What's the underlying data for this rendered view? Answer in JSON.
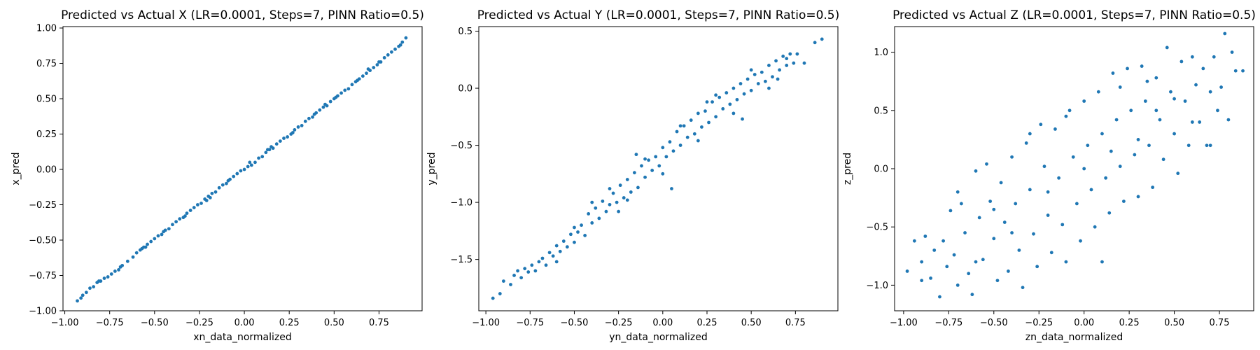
{
  "chart_data": [
    {
      "type": "scatter",
      "title": "Predicted vs Actual X (LR=0.0001, Steps=7, PINN Ratio=0.5)",
      "xlabel": "xn_data_normalized",
      "ylabel": "x_pred",
      "xlim": [
        -1.01,
        0.99
      ],
      "ylim": [
        -1.0,
        1.01
      ],
      "xticks": [
        -1.0,
        -0.75,
        -0.5,
        -0.25,
        0.0,
        0.25,
        0.5,
        0.75
      ],
      "xtick_labels": [
        "−1.00",
        "−0.75",
        "−0.50",
        "−0.25",
        "0.00",
        "0.25",
        "0.50",
        "0.75"
      ],
      "yticks": [
        -1.0,
        -0.75,
        -0.5,
        -0.25,
        0.0,
        0.25,
        0.5,
        0.75,
        1.0
      ],
      "ytick_labels": [
        "−1.00",
        "−0.75",
        "−0.50",
        "−0.25",
        "0.00",
        "0.25",
        "0.50",
        "0.75",
        "1.00"
      ],
      "grid": false,
      "color": "#1f77b4",
      "points": [
        [
          -0.93,
          -0.93
        ],
        [
          -0.91,
          -0.91
        ],
        [
          -0.9,
          -0.89
        ],
        [
          -0.88,
          -0.87
        ],
        [
          -0.86,
          -0.84
        ],
        [
          -0.84,
          -0.83
        ],
        [
          -0.82,
          -0.8
        ],
        [
          -0.8,
          -0.79
        ],
        [
          -0.78,
          -0.77
        ],
        [
          -0.76,
          -0.76
        ],
        [
          -0.74,
          -0.74
        ],
        [
          -0.72,
          -0.72
        ],
        [
          -0.7,
          -0.71
        ],
        [
          -0.68,
          -0.68
        ],
        [
          -0.65,
          -0.65
        ],
        [
          -0.62,
          -0.62
        ],
        [
          -0.6,
          -0.59
        ],
        [
          -0.58,
          -0.57
        ],
        [
          -0.56,
          -0.55
        ],
        [
          -0.54,
          -0.53
        ],
        [
          -0.52,
          -0.51
        ],
        [
          -0.5,
          -0.49
        ],
        [
          -0.48,
          -0.47
        ],
        [
          -0.46,
          -0.46
        ],
        [
          -0.44,
          -0.43
        ],
        [
          -0.42,
          -0.42
        ],
        [
          -0.4,
          -0.39
        ],
        [
          -0.38,
          -0.37
        ],
        [
          -0.36,
          -0.35
        ],
        [
          -0.34,
          -0.34
        ],
        [
          -0.32,
          -0.31
        ],
        [
          -0.3,
          -0.29
        ],
        [
          -0.28,
          -0.27
        ],
        [
          -0.26,
          -0.25
        ],
        [
          -0.24,
          -0.24
        ],
        [
          -0.22,
          -0.21
        ],
        [
          -0.2,
          -0.19
        ],
        [
          -0.18,
          -0.17
        ],
        [
          -0.16,
          -0.16
        ],
        [
          -0.14,
          -0.13
        ],
        [
          -0.12,
          -0.11
        ],
        [
          -0.1,
          -0.1
        ],
        [
          -0.08,
          -0.07
        ],
        [
          -0.06,
          -0.05
        ],
        [
          -0.04,
          -0.03
        ],
        [
          -0.02,
          -0.01
        ],
        [
          0.0,
          0.0
        ],
        [
          0.02,
          0.02
        ],
        [
          0.04,
          0.03
        ],
        [
          0.06,
          0.05
        ],
        [
          0.08,
          0.08
        ],
        [
          0.1,
          0.09
        ],
        [
          0.12,
          0.12
        ],
        [
          0.14,
          0.14
        ],
        [
          0.16,
          0.15
        ],
        [
          0.18,
          0.18
        ],
        [
          0.2,
          0.2
        ],
        [
          0.22,
          0.22
        ],
        [
          0.24,
          0.23
        ],
        [
          0.26,
          0.25
        ],
        [
          0.28,
          0.28
        ],
        [
          0.3,
          0.3
        ],
        [
          0.32,
          0.31
        ],
        [
          0.34,
          0.34
        ],
        [
          0.36,
          0.36
        ],
        [
          0.38,
          0.37
        ],
        [
          0.4,
          0.4
        ],
        [
          0.42,
          0.42
        ],
        [
          0.44,
          0.44
        ],
        [
          0.46,
          0.45
        ],
        [
          0.48,
          0.48
        ],
        [
          0.5,
          0.5
        ],
        [
          0.52,
          0.52
        ],
        [
          0.54,
          0.54
        ],
        [
          0.56,
          0.56
        ],
        [
          0.58,
          0.57
        ],
        [
          0.6,
          0.6
        ],
        [
          0.62,
          0.62
        ],
        [
          0.64,
          0.64
        ],
        [
          0.66,
          0.66
        ],
        [
          0.68,
          0.68
        ],
        [
          0.7,
          0.7
        ],
        [
          0.72,
          0.72
        ],
        [
          0.74,
          0.74
        ],
        [
          0.76,
          0.76
        ],
        [
          0.78,
          0.79
        ],
        [
          0.8,
          0.81
        ],
        [
          0.82,
          0.83
        ],
        [
          0.84,
          0.85
        ],
        [
          0.86,
          0.87
        ],
        [
          0.88,
          0.9
        ],
        [
          0.9,
          0.93
        ],
        [
          -0.81,
          -0.79
        ],
        [
          -0.69,
          -0.69
        ],
        [
          -0.57,
          -0.56
        ],
        [
          -0.45,
          -0.44
        ],
        [
          -0.33,
          -0.33
        ],
        [
          -0.21,
          -0.22
        ],
        [
          -0.09,
          -0.08
        ],
        [
          0.03,
          0.05
        ],
        [
          0.15,
          0.16
        ],
        [
          0.27,
          0.26
        ],
        [
          0.39,
          0.39
        ],
        [
          0.51,
          0.51
        ],
        [
          0.63,
          0.63
        ],
        [
          0.75,
          0.76
        ],
        [
          0.87,
          0.88
        ],
        [
          -0.55,
          -0.55
        ],
        [
          -0.19,
          -0.2
        ],
        [
          0.13,
          0.14
        ],
        [
          0.45,
          0.46
        ],
        [
          0.69,
          0.71
        ]
      ]
    },
    {
      "type": "scatter",
      "title": "Predicted vs Actual Y (LR=0.0001, Steps=7, PINN Ratio=0.5)",
      "xlabel": "yn_data_normalized",
      "ylabel": "y_pred",
      "xlim": [
        -1.04,
        0.99
      ],
      "ylim": [
        -1.95,
        0.54
      ],
      "xticks": [
        -1.0,
        -0.75,
        -0.5,
        -0.25,
        0.0,
        0.25,
        0.5,
        0.75
      ],
      "xtick_labels": [
        "−1.00",
        "−0.75",
        "−0.50",
        "−0.25",
        "0.00",
        "0.25",
        "0.50",
        "0.75"
      ],
      "yticks": [
        -1.5,
        -1.0,
        -0.5,
        0.0,
        0.5
      ],
      "ytick_labels": [
        "−1.5",
        "−1.0",
        "−0.5",
        "0.0",
        "0.5"
      ],
      "grid": false,
      "color": "#1f77b4",
      "points": [
        [
          -0.96,
          -1.84
        ],
        [
          -0.92,
          -1.8
        ],
        [
          -0.9,
          -1.69
        ],
        [
          -0.86,
          -1.72
        ],
        [
          -0.84,
          -1.64
        ],
        [
          -0.82,
          -1.6
        ],
        [
          -0.8,
          -1.66
        ],
        [
          -0.78,
          -1.58
        ],
        [
          -0.76,
          -1.61
        ],
        [
          -0.74,
          -1.55
        ],
        [
          -0.72,
          -1.6
        ],
        [
          -0.7,
          -1.52
        ],
        [
          -0.68,
          -1.49
        ],
        [
          -0.66,
          -1.55
        ],
        [
          -0.64,
          -1.44
        ],
        [
          -0.62,
          -1.47
        ],
        [
          -0.6,
          -1.38
        ],
        [
          -0.58,
          -1.43
        ],
        [
          -0.56,
          -1.34
        ],
        [
          -0.54,
          -1.39
        ],
        [
          -0.52,
          -1.28
        ],
        [
          -0.5,
          -1.35
        ],
        [
          -0.48,
          -1.26
        ],
        [
          -0.46,
          -1.2
        ],
        [
          -0.44,
          -1.29
        ],
        [
          -0.42,
          -1.1
        ],
        [
          -0.4,
          -1.18
        ],
        [
          -0.38,
          -1.05
        ],
        [
          -0.36,
          -1.14
        ],
        [
          -0.34,
          -0.99
        ],
        [
          -0.32,
          -1.08
        ],
        [
          -0.3,
          -1.02
        ],
        [
          -0.28,
          -0.92
        ],
        [
          -0.26,
          -1.0
        ],
        [
          -0.24,
          -0.85
        ],
        [
          -0.22,
          -0.96
        ],
        [
          -0.2,
          -0.8
        ],
        [
          -0.18,
          -0.91
        ],
        [
          -0.16,
          -0.74
        ],
        [
          -0.14,
          -0.87
        ],
        [
          -0.12,
          -0.68
        ],
        [
          -0.1,
          -0.78
        ],
        [
          -0.08,
          -0.63
        ],
        [
          -0.06,
          -0.72
        ],
        [
          -0.04,
          -0.6
        ],
        [
          -0.02,
          -0.68
        ],
        [
          0.0,
          -0.52
        ],
        [
          0.02,
          -0.6
        ],
        [
          0.04,
          -0.47
        ],
        [
          0.06,
          -0.55
        ],
        [
          0.08,
          -0.38
        ],
        [
          0.1,
          -0.5
        ],
        [
          0.12,
          -0.33
        ],
        [
          0.14,
          -0.43
        ],
        [
          0.16,
          -0.28
        ],
        [
          0.18,
          -0.4
        ],
        [
          0.2,
          -0.22
        ],
        [
          0.22,
          -0.34
        ],
        [
          0.24,
          -0.2
        ],
        [
          0.26,
          -0.3
        ],
        [
          0.28,
          -0.12
        ],
        [
          0.3,
          -0.25
        ],
        [
          0.32,
          -0.08
        ],
        [
          0.34,
          -0.18
        ],
        [
          0.36,
          -0.04
        ],
        [
          0.38,
          -0.14
        ],
        [
          0.4,
          0.0
        ],
        [
          0.42,
          -0.1
        ],
        [
          0.44,
          0.04
        ],
        [
          0.46,
          -0.05
        ],
        [
          0.48,
          0.08
        ],
        [
          0.5,
          -0.02
        ],
        [
          0.52,
          0.12
        ],
        [
          0.54,
          0.04
        ],
        [
          0.56,
          0.14
        ],
        [
          0.58,
          0.06
        ],
        [
          0.6,
          0.2
        ],
        [
          0.62,
          0.1
        ],
        [
          0.64,
          0.24
        ],
        [
          0.66,
          0.16
        ],
        [
          0.68,
          0.28
        ],
        [
          0.7,
          0.2
        ],
        [
          0.72,
          0.3
        ],
        [
          0.74,
          0.22
        ],
        [
          0.76,
          0.3
        ],
        [
          0.8,
          0.22
        ],
        [
          0.86,
          0.4
        ],
        [
          0.9,
          0.43
        ],
        [
          -0.6,
          -1.52
        ],
        [
          -0.5,
          -1.22
        ],
        [
          -0.4,
          -1.0
        ],
        [
          -0.3,
          -0.88
        ],
        [
          -0.2,
          -0.98
        ],
        [
          -0.1,
          -0.62
        ],
        [
          0.0,
          -0.75
        ],
        [
          0.1,
          -0.33
        ],
        [
          0.2,
          -0.46
        ],
        [
          0.3,
          -0.06
        ],
        [
          0.4,
          -0.22
        ],
        [
          0.5,
          0.16
        ],
        [
          0.6,
          0.0
        ],
        [
          0.7,
          0.26
        ],
        [
          -0.25,
          -1.08
        ],
        [
          0.05,
          -0.88
        ],
        [
          -0.15,
          -0.58
        ],
        [
          0.25,
          -0.12
        ],
        [
          0.45,
          -0.27
        ],
        [
          0.65,
          0.08
        ]
      ]
    },
    {
      "type": "scatter",
      "title": "Predicted vs Actual Z (LR=0.0001, Steps=7, PINN Ratio=0.5)",
      "xlabel": "zn_data_normalized",
      "ylabel": "z_pred",
      "xlim": [
        -1.05,
        0.94
      ],
      "ylim": [
        -1.22,
        1.22
      ],
      "xticks": [
        -1.0,
        -0.75,
        -0.5,
        -0.25,
        0.0,
        0.25,
        0.5,
        0.75
      ],
      "xtick_labels": [
        "−1.00",
        "−0.75",
        "−0.50",
        "−0.25",
        "0.00",
        "0.25",
        "0.50",
        "0.75"
      ],
      "yticks": [
        -1.0,
        -0.5,
        0.0,
        0.5,
        1.0
      ],
      "ytick_labels": [
        "−1.0",
        "−0.5",
        "0.0",
        "0.5",
        "1.0"
      ],
      "grid": false,
      "color": "#1f77b4",
      "points": [
        [
          -0.98,
          -0.88
        ],
        [
          -0.94,
          -0.62
        ],
        [
          -0.9,
          -0.96
        ],
        [
          -0.88,
          -0.58
        ],
        [
          -0.85,
          -0.94
        ],
        [
          -0.83,
          -0.7
        ],
        [
          -0.8,
          -1.1
        ],
        [
          -0.78,
          -0.62
        ],
        [
          -0.76,
          -0.84
        ],
        [
          -0.74,
          -0.36
        ],
        [
          -0.72,
          -0.74
        ],
        [
          -0.7,
          -1.0
        ],
        [
          -0.68,
          -0.3
        ],
        [
          -0.66,
          -0.55
        ],
        [
          -0.64,
          -0.9
        ],
        [
          -0.62,
          -1.08
        ],
        [
          -0.6,
          -0.02
        ],
        [
          -0.58,
          -0.42
        ],
        [
          -0.56,
          -0.78
        ],
        [
          -0.54,
          0.04
        ],
        [
          -0.52,
          -0.28
        ],
        [
          -0.5,
          -0.6
        ],
        [
          -0.48,
          -0.96
        ],
        [
          -0.46,
          -0.12
        ],
        [
          -0.44,
          -0.46
        ],
        [
          -0.42,
          -0.88
        ],
        [
          -0.4,
          0.1
        ],
        [
          -0.38,
          -0.3
        ],
        [
          -0.36,
          -0.7
        ],
        [
          -0.34,
          -1.02
        ],
        [
          -0.32,
          0.22
        ],
        [
          -0.3,
          -0.18
        ],
        [
          -0.28,
          -0.56
        ],
        [
          -0.26,
          -0.84
        ],
        [
          -0.24,
          0.38
        ],
        [
          -0.22,
          0.02
        ],
        [
          -0.2,
          -0.4
        ],
        [
          -0.18,
          -0.72
        ],
        [
          -0.16,
          0.34
        ],
        [
          -0.14,
          -0.08
        ],
        [
          -0.12,
          -0.48
        ],
        [
          -0.1,
          -0.8
        ],
        [
          -0.08,
          0.5
        ],
        [
          -0.06,
          0.1
        ],
        [
          -0.04,
          -0.3
        ],
        [
          -0.02,
          -0.62
        ],
        [
          0.0,
          0.58
        ],
        [
          0.02,
          0.2
        ],
        [
          0.04,
          -0.18
        ],
        [
          0.06,
          -0.5
        ],
        [
          0.08,
          0.66
        ],
        [
          0.1,
          0.3
        ],
        [
          0.12,
          -0.08
        ],
        [
          0.14,
          -0.38
        ],
        [
          0.16,
          0.82
        ],
        [
          0.18,
          0.42
        ],
        [
          0.2,
          0.02
        ],
        [
          0.22,
          -0.28
        ],
        [
          0.24,
          0.86
        ],
        [
          0.26,
          0.5
        ],
        [
          0.28,
          0.12
        ],
        [
          0.3,
          -0.24
        ],
        [
          0.32,
          0.88
        ],
        [
          0.34,
          0.58
        ],
        [
          0.36,
          0.2
        ],
        [
          0.38,
          -0.16
        ],
        [
          0.4,
          0.78
        ],
        [
          0.42,
          0.42
        ],
        [
          0.44,
          0.08
        ],
        [
          0.46,
          1.04
        ],
        [
          0.48,
          0.66
        ],
        [
          0.5,
          0.3
        ],
        [
          0.52,
          -0.04
        ],
        [
          0.54,
          0.92
        ],
        [
          0.56,
          0.58
        ],
        [
          0.58,
          0.2
        ],
        [
          0.6,
          0.96
        ],
        [
          0.62,
          0.72
        ],
        [
          0.64,
          0.4
        ],
        [
          0.66,
          0.86
        ],
        [
          0.68,
          0.2
        ],
        [
          0.7,
          0.66
        ],
        [
          0.72,
          0.96
        ],
        [
          0.74,
          0.5
        ],
        [
          0.76,
          0.7
        ],
        [
          0.78,
          1.16
        ],
        [
          0.8,
          0.42
        ],
        [
          0.82,
          1.0
        ],
        [
          0.84,
          0.84
        ],
        [
          0.88,
          0.84
        ],
        [
          -0.9,
          -0.8
        ],
        [
          -0.6,
          -0.8
        ],
        [
          -0.4,
          -0.55
        ],
        [
          -0.2,
          -0.2
        ],
        [
          0.0,
          0.0
        ],
        [
          0.2,
          0.7
        ],
        [
          0.4,
          0.5
        ],
        [
          0.6,
          0.4
        ],
        [
          -0.7,
          -0.2
        ],
        [
          -0.3,
          0.3
        ],
        [
          0.1,
          -0.8
        ],
        [
          0.3,
          0.25
        ],
        [
          0.5,
          0.6
        ],
        [
          0.7,
          0.2
        ],
        [
          -0.5,
          -0.35
        ],
        [
          -0.1,
          0.45
        ],
        [
          0.15,
          0.15
        ],
        [
          0.35,
          0.75
        ]
      ]
    }
  ]
}
